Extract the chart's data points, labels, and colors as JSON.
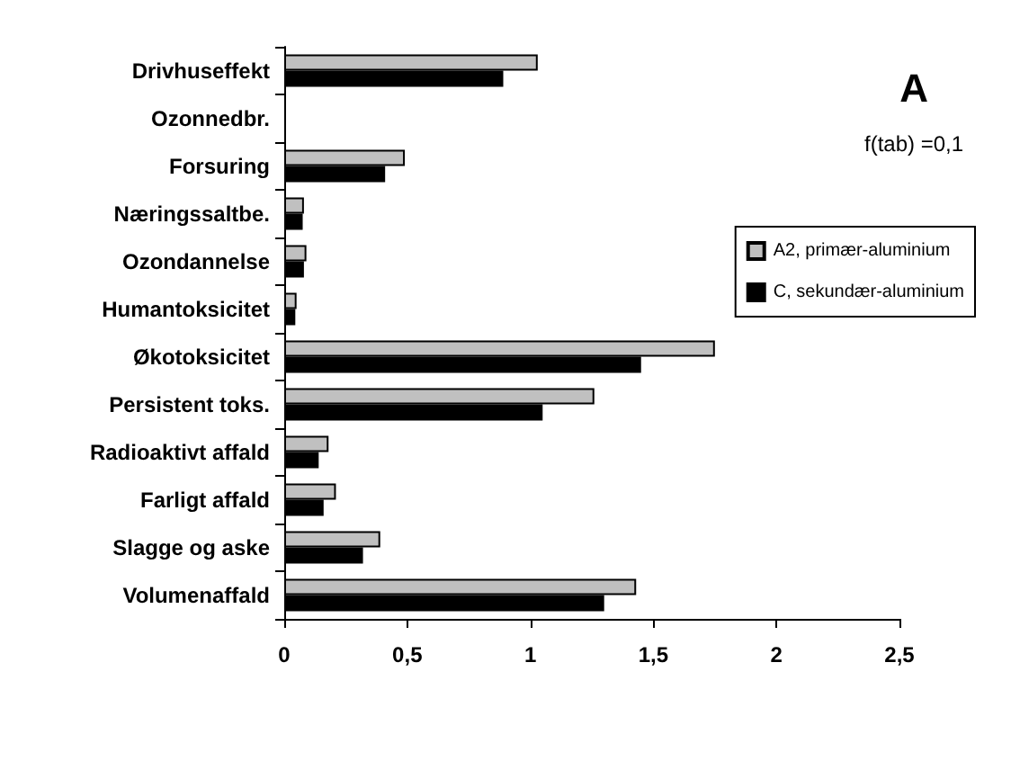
{
  "chart_data": {
    "type": "bar",
    "orientation": "horizontal",
    "categories": [
      "Drivhuseffekt",
      "Ozonnedbr.",
      "Forsuring",
      "Næringssaltbe.",
      "Ozondannelse",
      "Humantoksicitet",
      "Økotoksicitet",
      "Persistent toks.",
      "Radioaktivt affald",
      "Farligt affald",
      "Slagge og aske",
      "Volumenaffald"
    ],
    "series": [
      {
        "name": "A2, primær-aluminium",
        "color": "#c0c0c0",
        "values": [
          1.03,
          null,
          0.49,
          0.08,
          0.09,
          0.05,
          1.75,
          1.26,
          0.18,
          0.21,
          0.39,
          1.43
        ]
      },
      {
        "name": "C, sekundær-aluminium",
        "color": "#000000",
        "values": [
          0.89,
          null,
          0.41,
          0.075,
          0.08,
          0.045,
          1.45,
          1.05,
          0.14,
          0.16,
          0.32,
          1.3
        ]
      }
    ],
    "xlim": [
      0,
      2.5
    ],
    "xticks": [
      0,
      {
        "value": 0.5,
        "label": "0,5"
      },
      1,
      {
        "value": 1.5,
        "label": "1,5"
      },
      2,
      {
        "value": 2.5,
        "label": "2,5"
      }
    ],
    "annotations": [
      "A",
      "f(tab) =0,1"
    ],
    "legend": "right",
    "grid": false
  }
}
